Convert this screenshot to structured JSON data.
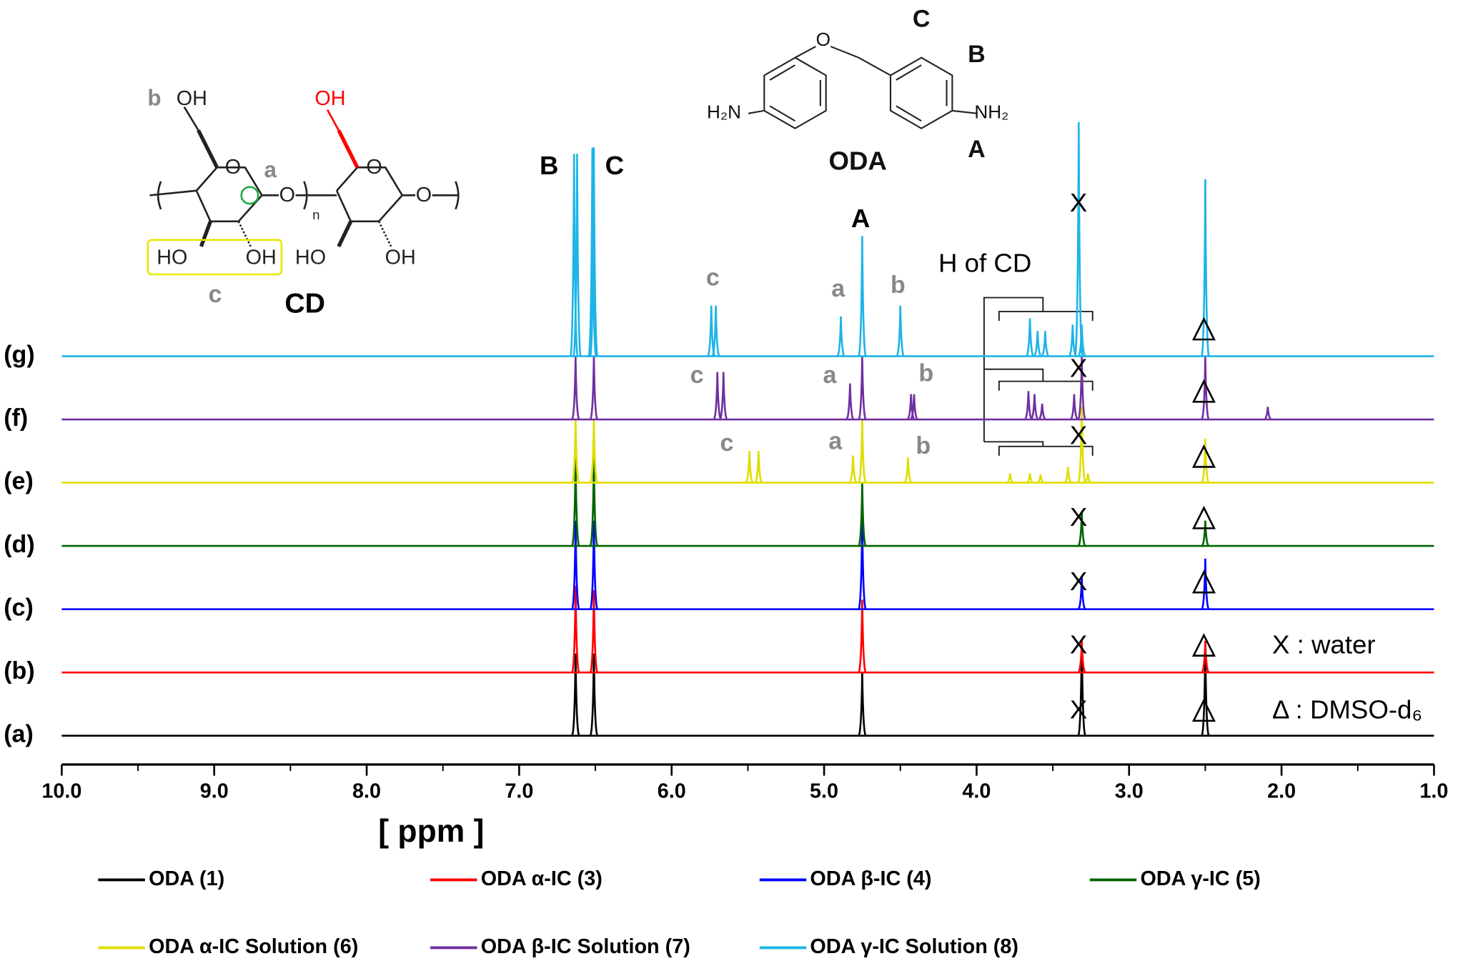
{
  "chart_data": {
    "type": "stacked-spectra",
    "x_label": "[ ppm ]",
    "xlim": [
      10,
      1
    ],
    "xticks": [
      {
        "value": 10,
        "label": "10.0"
      },
      {
        "value": 9,
        "label": "9.0"
      },
      {
        "value": 8,
        "label": "8.0"
      },
      {
        "value": 7,
        "label": "7.0"
      },
      {
        "value": 6,
        "label": "6.0"
      },
      {
        "value": 5,
        "label": "5.0"
      },
      {
        "value": 4,
        "label": "4.0"
      },
      {
        "value": 3,
        "label": "3.0"
      },
      {
        "value": 2,
        "label": "2.0"
      },
      {
        "value": 1,
        "label": "1.0"
      }
    ],
    "xminorticks": [
      9.5,
      8.5,
      7.5,
      6.5,
      5.5,
      4.5,
      3.5,
      2.5,
      1.5
    ],
    "series": [
      {
        "name": "ODA (1)",
        "trace_label": "(a)",
        "color": "#000000",
        "x": [
          6.63,
          6.51,
          4.75,
          3.31,
          2.5
        ],
        "values": [
          13,
          13,
          10,
          15,
          14
        ]
      },
      {
        "name": "ODA α-IC (3)",
        "trace_label": "(b)",
        "color": "#ff0000",
        "x": [
          6.63,
          6.51,
          4.75,
          3.31,
          2.5
        ],
        "values": [
          13.7,
          13,
          11.5,
          5,
          5
        ]
      },
      {
        "name": "ODA β-IC (4)",
        "trace_label": "(c)",
        "color": "#0000ff",
        "x": [
          6.63,
          6.51,
          4.75,
          3.31,
          2.5
        ],
        "values": [
          14,
          14,
          14,
          5,
          8
        ]
      },
      {
        "name": "ODA γ-IC (5)",
        "trace_label": "(d)",
        "color": "#006400",
        "x": [
          6.63,
          6.51,
          4.75,
          3.31,
          2.5
        ],
        "values": [
          14,
          14,
          10,
          5.5,
          4
        ]
      },
      {
        "name": "ODA α-IC Solution (6)",
        "trace_label": "(e)",
        "color": "#dede00",
        "x": [
          6.63,
          6.51,
          5.49,
          5.43,
          4.81,
          4.75,
          4.45,
          3.78,
          3.65,
          3.58,
          3.4,
          3.31,
          3.27,
          2.5
        ],
        "values": [
          10,
          10,
          5,
          5,
          4.3,
          10,
          4,
          1.5,
          1.5,
          1.3,
          2.5,
          12,
          1.5,
          7
        ]
      },
      {
        "name": "ODA β-IC Solution (7)",
        "trace_label": "(f)",
        "color": "#7030a0",
        "x": [
          6.63,
          6.51,
          5.7,
          5.66,
          4.83,
          4.75,
          4.43,
          4.41,
          3.66,
          3.62,
          3.57,
          3.36,
          3.31,
          2.5,
          2.09
        ],
        "values": [
          10,
          10,
          7.5,
          7.5,
          5.7,
          10,
          4,
          4,
          4.5,
          4,
          2.5,
          4,
          10,
          10,
          2
        ]
      },
      {
        "name": "ODA γ-IC Solution (8)",
        "trace_label": "(g)",
        "color": "#1eb4e6",
        "x": [
          6.64,
          6.62,
          6.52,
          6.51,
          5.74,
          5.71,
          4.89,
          4.75,
          4.5,
          3.65,
          3.6,
          3.55,
          3.37,
          3.33,
          3.31,
          2.5
        ],
        "values": [
          32,
          32,
          33,
          33,
          8,
          8,
          6.3,
          19,
          8,
          6,
          4,
          4,
          5,
          37,
          5,
          28
        ]
      }
    ],
    "peak_labels": [
      "B",
      "C",
      "A",
      "c",
      "a",
      "b",
      "c",
      "a",
      "b",
      "c",
      "a",
      "b",
      "H of CD"
    ],
    "water_marker": "X",
    "water_legend": "X : water",
    "dmso_legend": "Δ : DMSO-d₆",
    "cd_labels": [
      "b",
      "OH",
      "OH",
      "O",
      "a",
      "O",
      "n",
      "O",
      "O",
      "HO",
      "OH",
      "HO",
      "OH",
      "c",
      "CD"
    ],
    "oda_labels": [
      "O",
      "C",
      "B",
      "H₂N",
      "NH₂",
      "ODA",
      "A"
    ]
  }
}
